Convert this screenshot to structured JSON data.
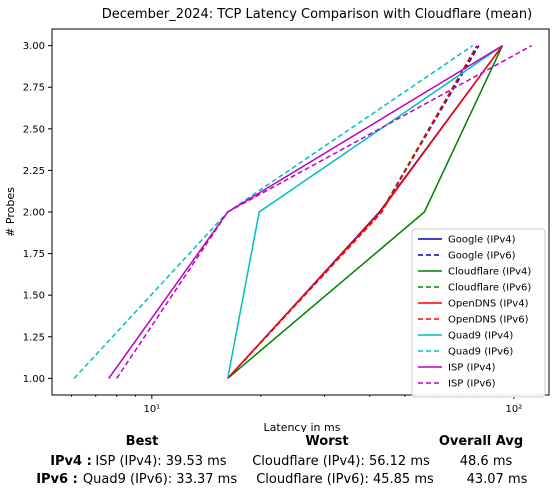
{
  "chart_data": {
    "type": "line",
    "title": "December_2024: TCP Latency Comparison with Cloudflare (mean)",
    "xlabel": "Latency in ms",
    "ylabel": "# Probes",
    "xscale": "log",
    "xlim": [
      5.3,
      125
    ],
    "ylim": [
      0.9,
      3.1
    ],
    "xticks": [
      10,
      100
    ],
    "xtick_labels": [
      "10¹",
      "10²"
    ],
    "yticks": [
      1.0,
      1.25,
      1.5,
      1.75,
      2.0,
      2.25,
      2.5,
      2.75,
      3.0
    ],
    "ytick_labels": [
      "1.00",
      "1.25",
      "1.50",
      "1.75",
      "2.00",
      "2.25",
      "2.50",
      "2.75",
      "3.00"
    ],
    "grid": false,
    "legend_position": "bottom-right",
    "series": [
      {
        "name": "Google (IPv4)",
        "color": "#0000cc",
        "dash": "solid",
        "x": [
          16.2,
          42.5,
          93.0
        ],
        "y": [
          1,
          2,
          3
        ]
      },
      {
        "name": "Google (IPv6)",
        "color": "#0000cc",
        "dash": "dashed",
        "x": [
          16.2,
          43.0,
          80.0
        ],
        "y": [
          1,
          2,
          3
        ]
      },
      {
        "name": "Cloudflare (IPv4)",
        "color": "#008000",
        "dash": "solid",
        "x": [
          16.2,
          56.6,
          93.0
        ],
        "y": [
          1,
          2,
          3
        ]
      },
      {
        "name": "Cloudflare (IPv6)",
        "color": "#008000",
        "dash": "dashed",
        "x": [
          16.2,
          42.9,
          79.0
        ],
        "y": [
          1,
          2,
          3
        ]
      },
      {
        "name": "OpenDNS (IPv4)",
        "color": "#ff0000",
        "dash": "solid",
        "x": [
          16.2,
          42.7,
          93.0
        ],
        "y": [
          1,
          2,
          3
        ]
      },
      {
        "name": "OpenDNS (IPv6)",
        "color": "#ff0000",
        "dash": "dashed",
        "x": [
          16.2,
          43.2,
          79.0
        ],
        "y": [
          1,
          2,
          3
        ]
      },
      {
        "name": "Quad9 (IPv4)",
        "color": "#00bfbf",
        "dash": "solid",
        "x": [
          16.2,
          19.8,
          93.0
        ],
        "y": [
          1,
          2,
          3
        ]
      },
      {
        "name": "Quad9 (IPv6)",
        "color": "#00bfbf",
        "dash": "dashed",
        "x": [
          6.1,
          16.2,
          77.0
        ],
        "y": [
          1,
          2,
          3
        ]
      },
      {
        "name": "ISP (IPv4)",
        "color": "#bf00bf",
        "dash": "solid",
        "x": [
          7.6,
          16.2,
          93.0
        ],
        "y": [
          1,
          2,
          3
        ]
      },
      {
        "name": "ISP (IPv6)",
        "color": "#bf00bf",
        "dash": "dashed",
        "x": [
          8.0,
          16.2,
          112.0
        ],
        "y": [
          1,
          2,
          3
        ]
      }
    ]
  },
  "summary": {
    "headers": {
      "best": "Best",
      "worst": "Worst",
      "avg": "Overall Avg"
    },
    "rows": [
      {
        "label": "IPv4 :",
        "best": "ISP (IPv4): 39.53 ms",
        "worst": "Cloudflare (IPv4): 56.12 ms",
        "avg": "48.6 ms"
      },
      {
        "label": "IPv6 :",
        "best": "Quad9 (IPv6): 33.37 ms",
        "worst": "Cloudflare (IPv6): 45.85 ms",
        "avg": "43.07 ms"
      }
    ]
  }
}
